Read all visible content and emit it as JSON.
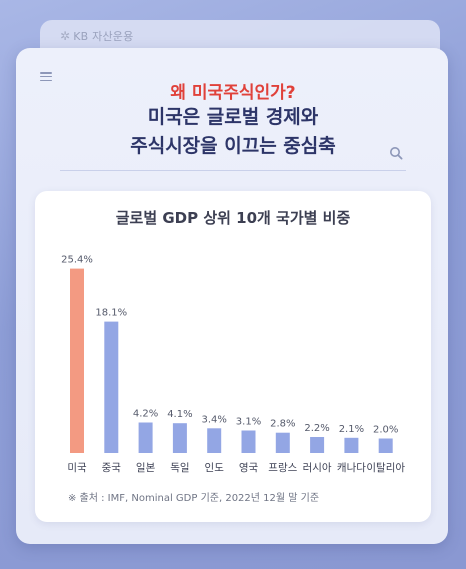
{
  "brand": {
    "logo_icon": "kb-star-icon",
    "logo_glyph": "✲",
    "name": "KB 자산운용"
  },
  "header": {
    "menu_icon": "hamburger-menu-icon",
    "search_icon": "search-icon",
    "accent_line": "왜 미국주식인가?",
    "main_line_1": "미국은 글로벌 경제와",
    "main_line_2": "주식시장을 이끄는 중심축",
    "accent_color": "#e0413a",
    "main_color": "#2d3568"
  },
  "chart_data": {
    "type": "bar",
    "title": "글로벌 GDP 상위 10개 국가별 비중",
    "xlabel": "",
    "ylabel": "",
    "ylim": [
      0,
      27
    ],
    "categories": [
      "미국",
      "중국",
      "일본",
      "독일",
      "인도",
      "영국",
      "프랑스",
      "러시아",
      "캐나다",
      "이탈리아"
    ],
    "values": [
      25.4,
      18.1,
      4.2,
      4.1,
      3.4,
      3.1,
      2.8,
      2.2,
      2.1,
      2.0
    ],
    "value_labels": [
      "25.4%",
      "18.1%",
      "4.2%",
      "4.1%",
      "3.4%",
      "3.1%",
      "2.8%",
      "2.2%",
      "2.1%",
      "2.0%"
    ],
    "bar_colors": [
      "#f39a82",
      "#93a6e4",
      "#93a6e4",
      "#93a6e4",
      "#93a6e4",
      "#93a6e4",
      "#93a6e4",
      "#93a6e4",
      "#93a6e4",
      "#93a6e4"
    ],
    "grid": false,
    "legend": "none"
  },
  "source": "※ 출처 : IMF, Nominal GDP 기준, 2022년 12월 말 기준"
}
